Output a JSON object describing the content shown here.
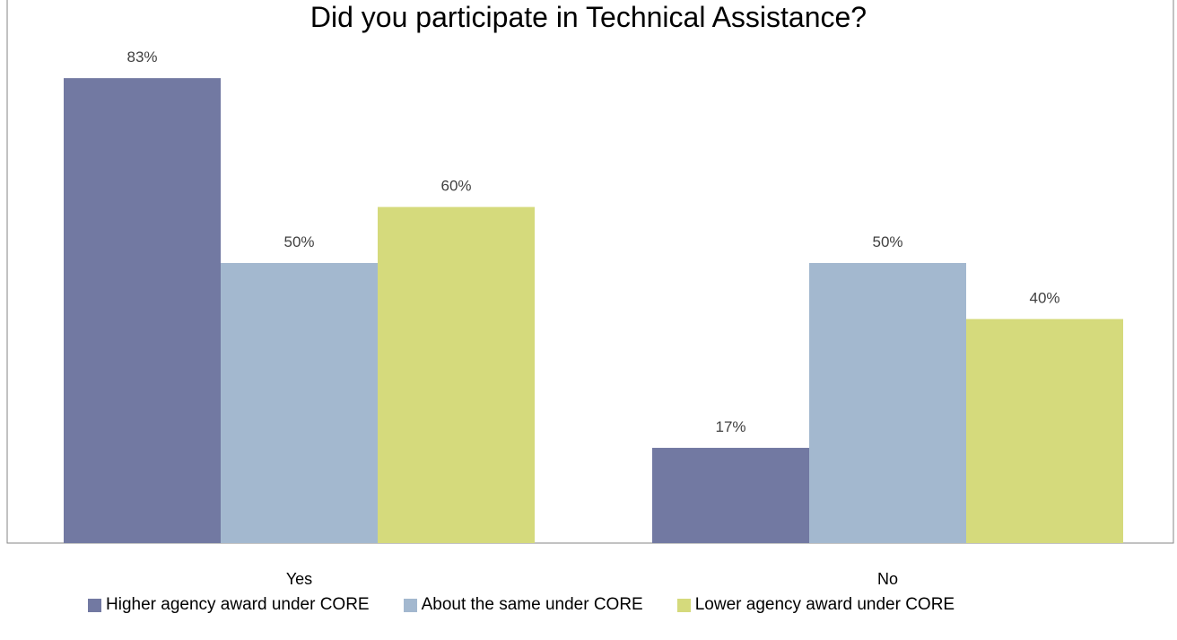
{
  "chart_data": {
    "type": "bar",
    "title": "Did you participate in Technical Assistance?",
    "categories": [
      "Yes",
      "No"
    ],
    "series": [
      {
        "name": "Higher agency award under CORE",
        "values": [
          83,
          17
        ],
        "color": "#7279a2"
      },
      {
        "name": "About the same under CORE",
        "values": [
          50,
          50
        ],
        "color": "#a3b8cf"
      },
      {
        "name": "Lower agency award under CORE",
        "values": [
          60,
          40
        ],
        "color": "#d5da7c"
      }
    ],
    "value_suffix": "%",
    "ylim": [
      0,
      100
    ],
    "grid": false,
    "legend_position": "bottom"
  }
}
